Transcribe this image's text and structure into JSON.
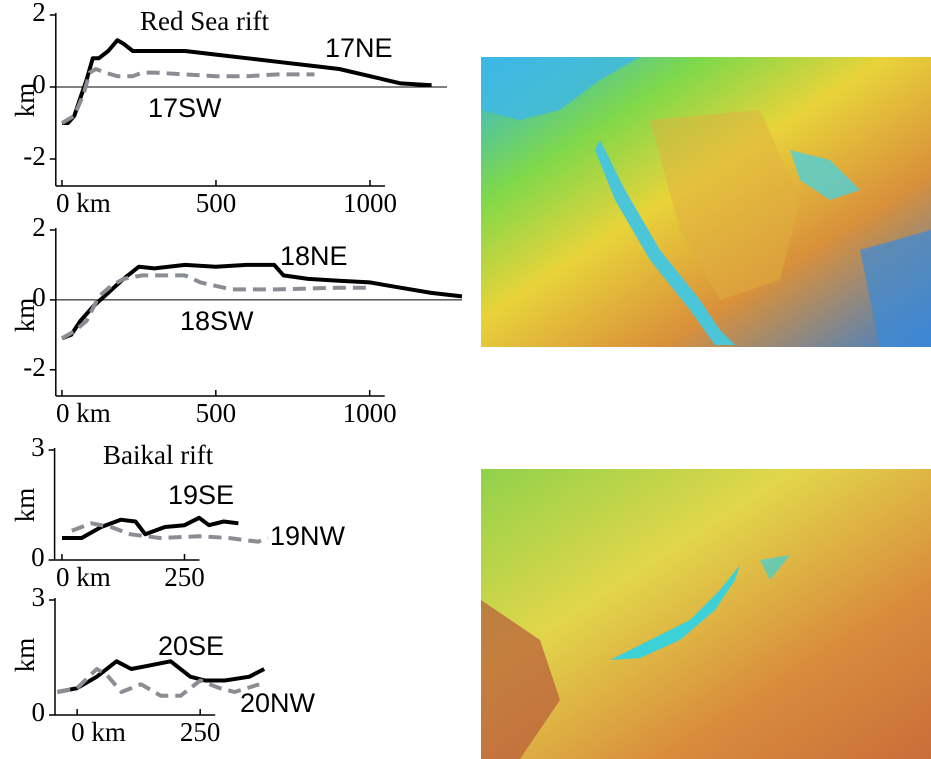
{
  "chart_data": [
    {
      "type": "line",
      "title": "Red Sea rift",
      "ylabel": "km",
      "xlim": [
        -20,
        1250
      ],
      "ylim": [
        -2.75,
        2
      ],
      "xticks": [
        {
          "value": 0,
          "label": "0 km"
        },
        500,
        1000
      ],
      "yticks": [
        -2,
        0,
        2
      ],
      "series": [
        {
          "name": "17NE",
          "color": "#000000",
          "dashed": false,
          "x": [
            0,
            20,
            40,
            60,
            80,
            100,
            120,
            150,
            180,
            200,
            230,
            300,
            400,
            500,
            600,
            700,
            800,
            900,
            1000,
            1100,
            1200
          ],
          "values": [
            -1,
            -1,
            -0.8,
            -0.3,
            0.2,
            0.8,
            0.8,
            1.0,
            1.3,
            1.2,
            1.0,
            1.0,
            1.0,
            0.9,
            0.8,
            0.7,
            0.6,
            0.5,
            0.3,
            0.1,
            0.05
          ]
        },
        {
          "name": "17SW",
          "color": "#8a8d93",
          "dashed": true,
          "x": [
            0,
            40,
            70,
            90,
            110,
            140,
            180,
            230,
            260,
            300,
            400,
            500,
            600,
            700,
            820
          ],
          "values": [
            -1,
            -0.8,
            -0.2,
            0.4,
            0.5,
            0.4,
            0.3,
            0.3,
            0.4,
            0.4,
            0.35,
            0.3,
            0.3,
            0.35,
            0.35
          ]
        }
      ]
    },
    {
      "type": "line",
      "ylabel": "km",
      "xlim": [
        -20,
        1300
      ],
      "ylim": [
        -2.75,
        2
      ],
      "xticks": [
        {
          "value": 0,
          "label": "0 km"
        },
        500,
        1000
      ],
      "yticks": [
        -2,
        0,
        2
      ],
      "series": [
        {
          "name": "18NE",
          "color": "#000000",
          "dashed": false,
          "x": [
            0,
            30,
            60,
            100,
            150,
            200,
            250,
            300,
            400,
            500,
            600,
            690,
            720,
            800,
            900,
            1000,
            1100,
            1200,
            1300
          ],
          "values": [
            -1.1,
            -1,
            -0.6,
            -0.2,
            0.2,
            0.6,
            0.95,
            0.9,
            1.0,
            0.95,
            1.0,
            1.0,
            0.7,
            0.6,
            0.55,
            0.5,
            0.35,
            0.2,
            0.1
          ]
        },
        {
          "name": "18SW",
          "color": "#8a8d93",
          "dashed": true,
          "x": [
            0,
            40,
            80,
            120,
            160,
            200,
            260,
            400,
            450,
            550,
            700,
            900,
            1000
          ],
          "values": [
            -1.1,
            -0.9,
            -0.6,
            0.1,
            0.4,
            0.6,
            0.7,
            0.7,
            0.5,
            0.3,
            0.3,
            0.35,
            0.35
          ]
        }
      ]
    },
    {
      "type": "line",
      "title": "Baikal rift",
      "ylabel": "km",
      "xlim": [
        -15,
        430
      ],
      "ylim": [
        0,
        3
      ],
      "xticks": [
        {
          "value": 0,
          "label": "0 km"
        },
        250
      ],
      "yticks": [
        0,
        3
      ],
      "series": [
        {
          "name": "19SE",
          "color": "#000000",
          "dashed": false,
          "x": [
            0,
            40,
            80,
            120,
            150,
            170,
            210,
            250,
            280,
            300,
            330,
            360
          ],
          "values": [
            0.6,
            0.6,
            0.9,
            1.1,
            1.05,
            0.7,
            0.9,
            0.95,
            1.15,
            0.95,
            1.05,
            1.0
          ]
        },
        {
          "name": "19NW",
          "color": "#8a8d93",
          "dashed": true,
          "x": [
            20,
            60,
            100,
            140,
            200,
            280,
            340,
            400,
            420
          ],
          "values": [
            0.8,
            1.0,
            0.9,
            0.7,
            0.6,
            0.65,
            0.6,
            0.5,
            0.6
          ]
        }
      ]
    },
    {
      "type": "line",
      "ylabel": "km",
      "xlim": [
        -45,
        400
      ],
      "ylim": [
        0,
        3
      ],
      "xticks": [
        {
          "value": 0,
          "label": "0 km"
        },
        250
      ],
      "yticks": [
        0,
        3
      ],
      "series": [
        {
          "name": "20SE",
          "color": "#000000",
          "dashed": false,
          "x": [
            -40,
            0,
            40,
            80,
            110,
            150,
            190,
            230,
            260,
            300,
            350,
            380
          ],
          "values": [
            0.6,
            0.7,
            1.0,
            1.4,
            1.2,
            1.3,
            1.4,
            1.0,
            0.9,
            0.9,
            1.0,
            1.2
          ]
        },
        {
          "name": "20NW",
          "color": "#8a8d93",
          "dashed": true,
          "x": [
            -40,
            0,
            40,
            60,
            90,
            130,
            170,
            210,
            250,
            290,
            320,
            370
          ],
          "values": [
            0.6,
            0.7,
            1.2,
            1.05,
            0.6,
            0.8,
            0.5,
            0.5,
            0.9,
            0.7,
            0.6,
            0.8
          ]
        }
      ]
    }
  ]
}
